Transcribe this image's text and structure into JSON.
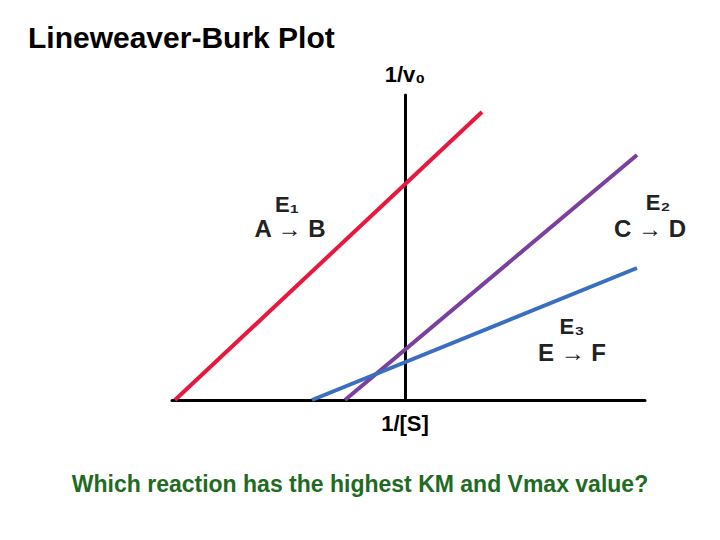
{
  "chart_data": {
    "type": "line",
    "title": "Lineweaver-Burk Plot",
    "subtitle": "Which reaction has the highest KM and Vmax value?",
    "x_label": "1/[S]",
    "y_label": "1/v₀",
    "xlim": [
      -2.33,
      2.4
    ],
    "ylim": [
      0,
      3.05
    ],
    "tick_labels": false,
    "grid": false,
    "series": [
      {
        "name": "E₁",
        "color": "#e8173d",
        "x": [
          -2.3,
          0.77
        ],
        "values": [
          0,
          2.88
        ]
      },
      {
        "name": "E₂",
        "color": "#7b3f9e",
        "x": [
          -0.6,
          2.32
        ],
        "values": [
          0,
          2.45
        ]
      },
      {
        "name": "E₃",
        "color": "#3a6ebf",
        "x": [
          -0.93,
          2.32
        ],
        "values": [
          0,
          1.32
        ]
      }
    ],
    "annotations": [
      {
        "series": "E₁",
        "text": "A → B"
      },
      {
        "series": "E₂",
        "text": "C → D"
      },
      {
        "series": "E₃",
        "text": "E → F"
      }
    ]
  }
}
